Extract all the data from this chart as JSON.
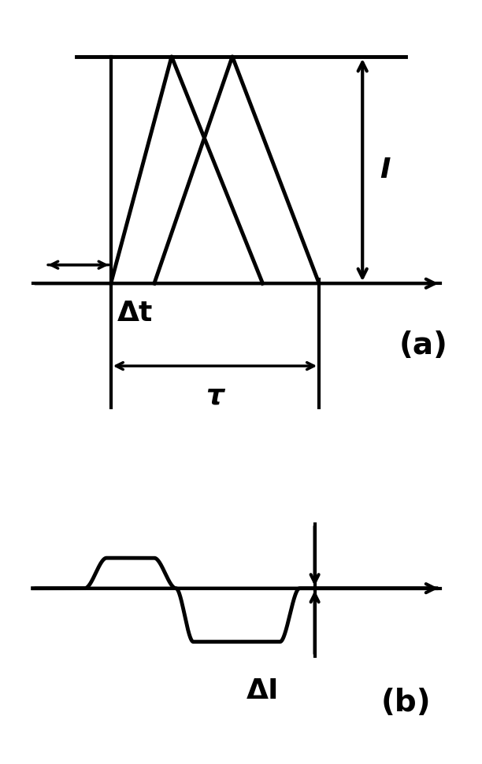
{
  "bg_color": "#ffffff",
  "line_color": "#000000",
  "lw": 3.0,
  "fig_width": 6.12,
  "fig_height": 9.71,
  "panel_a_label": "(a)",
  "panel_b_label": "(b)",
  "label_I": "I",
  "label_delta_t": "Δt",
  "label_tau": "τ",
  "label_delta_I": "ΔI",
  "fontsize_label": 26,
  "fontsize_panel": 28,
  "arrowhead_scale": 20
}
